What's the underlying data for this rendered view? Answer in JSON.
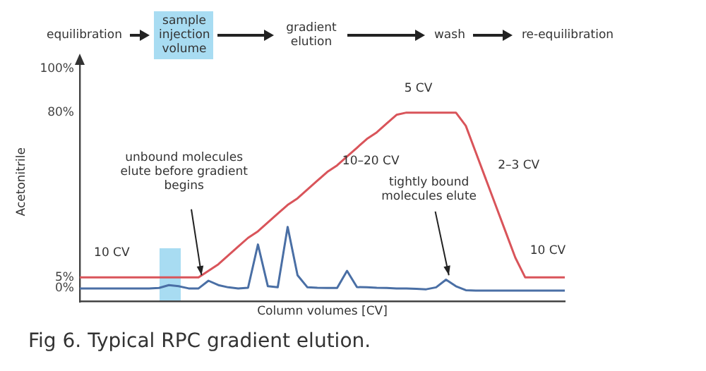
{
  "chart_data": {
    "type": "line",
    "title": "Fig 6. Typical RPC gradient elution.",
    "xlabel": "Column volumes [CV]",
    "ylabel": "Acetonitrile",
    "categories": [
      null,
      null,
      null,
      null,
      null,
      null,
      null,
      null,
      null,
      null,
      null,
      null,
      null,
      null,
      null,
      null,
      null,
      null,
      null,
      null,
      null,
      null,
      null,
      null,
      null,
      null,
      null,
      null,
      null,
      null,
      null,
      null,
      null,
      null,
      null,
      null,
      null,
      null,
      null,
      null,
      null,
      null,
      null,
      null,
      null,
      null,
      null,
      null,
      null,
      null
    ],
    "series": [
      {
        "color": "#d9545a",
        "values": [
          5,
          5,
          5,
          5,
          5,
          5,
          5,
          5,
          5,
          5,
          5,
          5,
          5,
          8,
          11,
          15,
          19,
          23,
          26,
          30,
          34,
          38,
          41,
          45,
          49,
          53,
          56,
          60,
          64,
          68,
          71,
          75,
          79,
          80,
          80,
          80,
          80,
          80,
          80,
          74,
          62,
          50,
          38,
          26,
          14,
          5,
          5,
          5,
          5,
          5
        ]
      },
      {
        "color": "#4a6fa5",
        "values": [
          0,
          0,
          0,
          0,
          0,
          0,
          0,
          0,
          0.2,
          1.5,
          1,
          0,
          0,
          3.5,
          1.5,
          0.5,
          0,
          0.3,
          20,
          1,
          0.5,
          28,
          6,
          0.5,
          0.3,
          0.2,
          0.2,
          8,
          0.6,
          0.5,
          0.3,
          0.2,
          0,
          0,
          -0.2,
          -0.4,
          0.5,
          4,
          1,
          -0.8,
          -1,
          -1,
          -1,
          -1,
          -1,
          -1,
          -1,
          -1,
          -1,
          -1
        ]
      }
    ],
    "ylim": [
      -6,
      103
    ],
    "yticks": [
      {
        "value": 0,
        "label": "0%"
      },
      {
        "value": 5,
        "label": "5%"
      },
      {
        "value": 80,
        "label": "80%"
      },
      {
        "value": 100,
        "label": "100%"
      }
    ],
    "tick_labels": "y",
    "grid": false,
    "legend": false,
    "marker": "none",
    "line_style": "solid",
    "annotations": [
      "equilibration",
      "sample injection volume",
      "gradient elution",
      "wash",
      "re-equilibration",
      "10 CV",
      "unbound molecules elute before gradient begins",
      "10–20 CV",
      "5 CV",
      "2–3 CV",
      "tightly bound molecules elute",
      "10 CV"
    ]
  }
}
